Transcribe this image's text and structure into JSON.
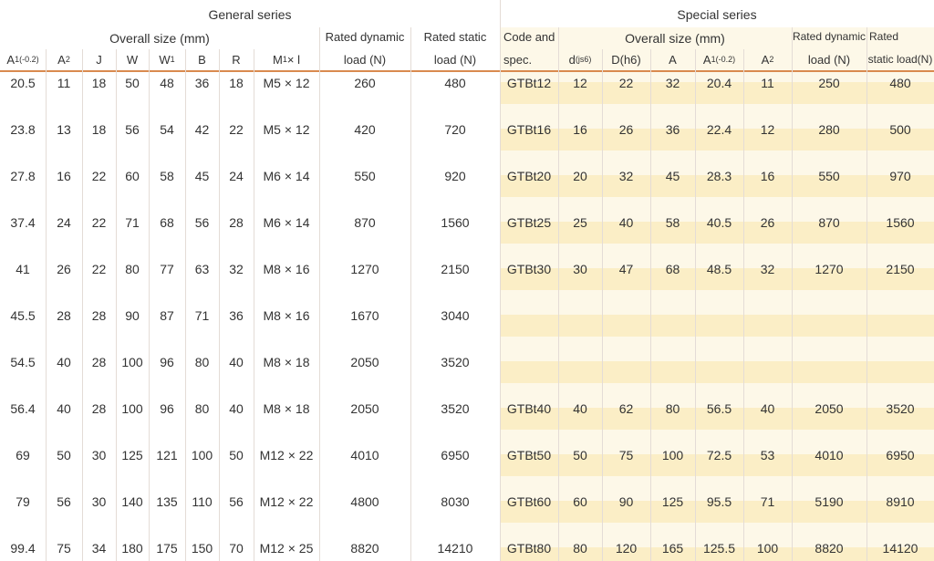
{
  "header": {
    "general": "General series",
    "special": "Special series",
    "general_size": "Overall size (mm)",
    "general_dynamic": [
      "Rated dynamic",
      "load (N)"
    ],
    "general_static": [
      "Rated static",
      "load (N)"
    ],
    "special_code": [
      "Code and",
      "spec."
    ],
    "special_size": "Overall size (mm)",
    "special_dynamic": [
      "Rated dynamic",
      "load (N)"
    ],
    "special_static": [
      "Rated",
      "static load(N)"
    ]
  },
  "general_columns": [
    {
      "main": "A",
      "sub": "1",
      "note": "(-0.2)"
    },
    {
      "main": "A",
      "sub": "2"
    },
    {
      "main": "J"
    },
    {
      "main": "W"
    },
    {
      "main": "W",
      "sub": "1"
    },
    {
      "main": "B"
    },
    {
      "main": "R"
    },
    {
      "main": "M",
      "sub": "1",
      "note": " × l"
    }
  ],
  "special_columns": [
    {
      "main": "d",
      "note": "(js6)"
    },
    {
      "main": "D",
      "note": "(h6)"
    },
    {
      "main": "A"
    },
    {
      "main": "A",
      "sub": "1",
      "note": "(-0.2)"
    },
    {
      "main": "A",
      "sub": "2"
    }
  ],
  "rows": [
    {
      "general": [
        20.5,
        11,
        18,
        50,
        48,
        36,
        18,
        "M5 × 12",
        260,
        480
      ],
      "special": [
        "GTBt12",
        12,
        22,
        32,
        20.4,
        11,
        250,
        480
      ]
    },
    {
      "general": [
        23.8,
        13,
        18,
        56,
        54,
        42,
        22,
        "M5 × 12",
        420,
        720
      ],
      "special": [
        "GTBt16",
        16,
        26,
        36,
        22.4,
        12,
        280,
        500
      ]
    },
    {
      "general": [
        27.8,
        16,
        22,
        60,
        58,
        45,
        24,
        "M6 × 14",
        550,
        920
      ],
      "special": [
        "GTBt20",
        20,
        32,
        45,
        28.3,
        16,
        550,
        970
      ]
    },
    {
      "general": [
        37.4,
        24,
        22,
        71,
        68,
        56,
        28,
        "M6 × 14",
        870,
        1560
      ],
      "special": [
        "GTBt25",
        25,
        40,
        58,
        40.5,
        26,
        870,
        1560
      ]
    },
    {
      "general": [
        41,
        26,
        22,
        80,
        77,
        63,
        32,
        "M8 × 16",
        1270,
        2150
      ],
      "special": [
        "GTBt30",
        30,
        47,
        68,
        48.5,
        32,
        1270,
        2150
      ]
    },
    {
      "general": [
        45.5,
        28,
        28,
        90,
        87,
        71,
        36,
        "M8 × 16",
        1670,
        3040
      ],
      "special": null
    },
    {
      "general": [
        54.5,
        40,
        28,
        100,
        96,
        80,
        40,
        "M8 × 18",
        2050,
        3520
      ],
      "special": null
    },
    {
      "general": [
        56.4,
        40,
        28,
        100,
        96,
        80,
        40,
        "M8 × 18",
        2050,
        3520
      ],
      "special": [
        "GTBt40",
        40,
        62,
        80,
        56.5,
        40,
        2050,
        3520
      ]
    },
    {
      "general": [
        69,
        50,
        30,
        125,
        121,
        100,
        50,
        "M12 × 22",
        4010,
        6950
      ],
      "special": [
        "GTBt50",
        50,
        75,
        100,
        72.5,
        53,
        4010,
        6950
      ]
    },
    {
      "general": [
        79,
        56,
        30,
        140,
        135,
        110,
        56,
        "M12 × 22",
        4800,
        8030
      ],
      "special": [
        "GTBt60",
        60,
        90,
        125,
        95.5,
        71,
        5190,
        8910
      ]
    },
    {
      "general": [
        99.4,
        75,
        34,
        180,
        175,
        150,
        70,
        "M12 × 25",
        8820,
        14210
      ],
      "special": [
        "GTBt80",
        80,
        120,
        165,
        125.5,
        100,
        8820,
        14120
      ]
    }
  ]
}
